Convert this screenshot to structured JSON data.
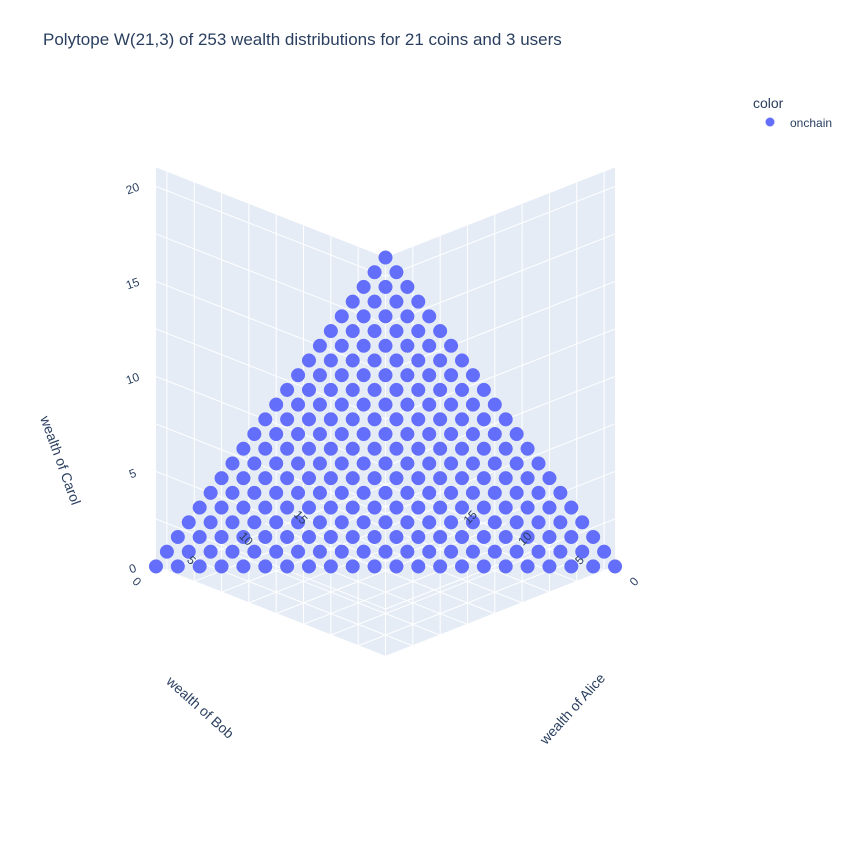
{
  "chart_data": {
    "type": "scatter",
    "title": "Polytope W(21,3) of 253 wealth distributions for 21 coins and 3 users",
    "x_label": "wealth of Alice",
    "y_label": "wealth of Bob",
    "z_label": "wealth of Carol",
    "x_ticks": [
      "0",
      "5",
      "10",
      "15"
    ],
    "y_ticks": [
      "0",
      "5",
      "10",
      "15"
    ],
    "z_ticks": [
      "0",
      "5",
      "10",
      "15",
      "20"
    ],
    "x_range": [
      0,
      21
    ],
    "y_range": [
      0,
      21
    ],
    "z_range": [
      0,
      21
    ],
    "total_coins": 21,
    "point_count": 253,
    "constraint": "x + y + z = 21, x, y, z >= 0 integers",
    "legend": {
      "title": "color",
      "placement": "top-right",
      "entries": [
        "onchain"
      ]
    },
    "series": [
      {
        "name": "onchain",
        "color": "#636efa"
      }
    ],
    "grid": true
  },
  "colors": {
    "marker": "#636efa",
    "pane": "#e5ecf6",
    "grid": "#ffffff",
    "text": "#2a3f5f"
  }
}
